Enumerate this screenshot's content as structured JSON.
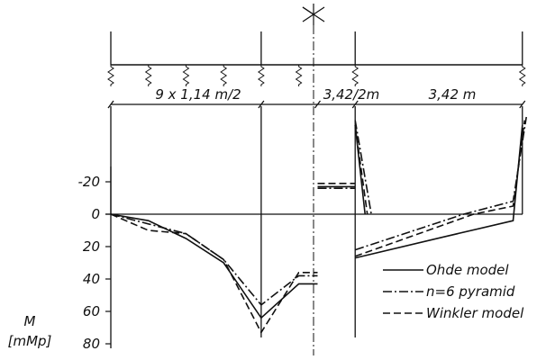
{
  "chart_data": {
    "type": "line",
    "ylabel": [
      "M",
      "[mMp]"
    ],
    "y_ticks": [
      {
        "value": -20,
        "label": "-20"
      },
      {
        "value": 0,
        "label": "0"
      },
      {
        "value": 20,
        "label": "20"
      },
      {
        "value": 40,
        "label": "40"
      },
      {
        "value": 60,
        "label": "60"
      },
      {
        "value": 80,
        "label": "80"
      }
    ],
    "ylim": [
      -60,
      80
    ],
    "x_units": "m",
    "span_labels": [
      "9 x 1,14 m/2",
      "3,42/2m",
      "3,42 m"
    ],
    "support_positions": [
      0,
      4.56,
      7.41,
      12.48
    ],
    "symmetry_axis_x": 6.27,
    "series": [
      {
        "name": "Ohde model",
        "style": "solid",
        "segments": [
          [
            [
              0,
              0
            ],
            [
              1.14,
              4
            ],
            [
              2.28,
              15
            ],
            [
              3.42,
              30
            ],
            [
              4.56,
              64
            ],
            [
              5.7,
              43
            ],
            [
              6.27,
              43
            ]
          ],
          [
            [
              6.27,
              -17
            ],
            [
              7.41,
              -17
            ]
          ],
          [
            [
              7.41,
              -55
            ],
            [
              7.71,
              0
            ]
          ],
          [
            [
              7.41,
              27
            ],
            [
              10.1,
              14
            ],
            [
              12.2,
              4
            ],
            [
              12.48,
              -55
            ]
          ]
        ]
      },
      {
        "name": "n=6 pyramid",
        "style": "dashdot",
        "segments": [
          [
            [
              0,
              0
            ],
            [
              1.14,
              6
            ],
            [
              2.28,
              12
            ],
            [
              3.42,
              28
            ],
            [
              4.56,
              56
            ],
            [
              5.7,
              38
            ],
            [
              6.27,
              38
            ]
          ],
          [
            [
              6.27,
              -16
            ],
            [
              7.41,
              -16
            ]
          ],
          [
            [
              7.41,
              -58
            ],
            [
              7.9,
              0
            ]
          ],
          [
            [
              7.41,
              22
            ],
            [
              10.7,
              0
            ],
            [
              12.2,
              -8
            ],
            [
              12.6,
              -60
            ]
          ]
        ]
      },
      {
        "name": "Winkler model",
        "style": "dashed",
        "segments": [
          [
            [
              0,
              0
            ],
            [
              1.14,
              10
            ],
            [
              2.28,
              12
            ],
            [
              3.42,
              28
            ],
            [
              4.56,
              73
            ],
            [
              5.7,
              36
            ],
            [
              6.27,
              36
            ]
          ],
          [
            [
              6.27,
              -19
            ],
            [
              7.41,
              -19
            ]
          ],
          [
            [
              7.41,
              -55
            ],
            [
              7.78,
              0
            ]
          ],
          [
            [
              7.41,
              26
            ],
            [
              11,
              0
            ],
            [
              12.2,
              -5
            ],
            [
              12.55,
              -58
            ]
          ]
        ]
      }
    ],
    "legend_position": "bottom-right",
    "grid": false
  },
  "styles": {
    "ink": "#111111",
    "background": "#ffffff"
  },
  "icons": {
    "symmetry_mark": "symmetry-axis-icon"
  }
}
